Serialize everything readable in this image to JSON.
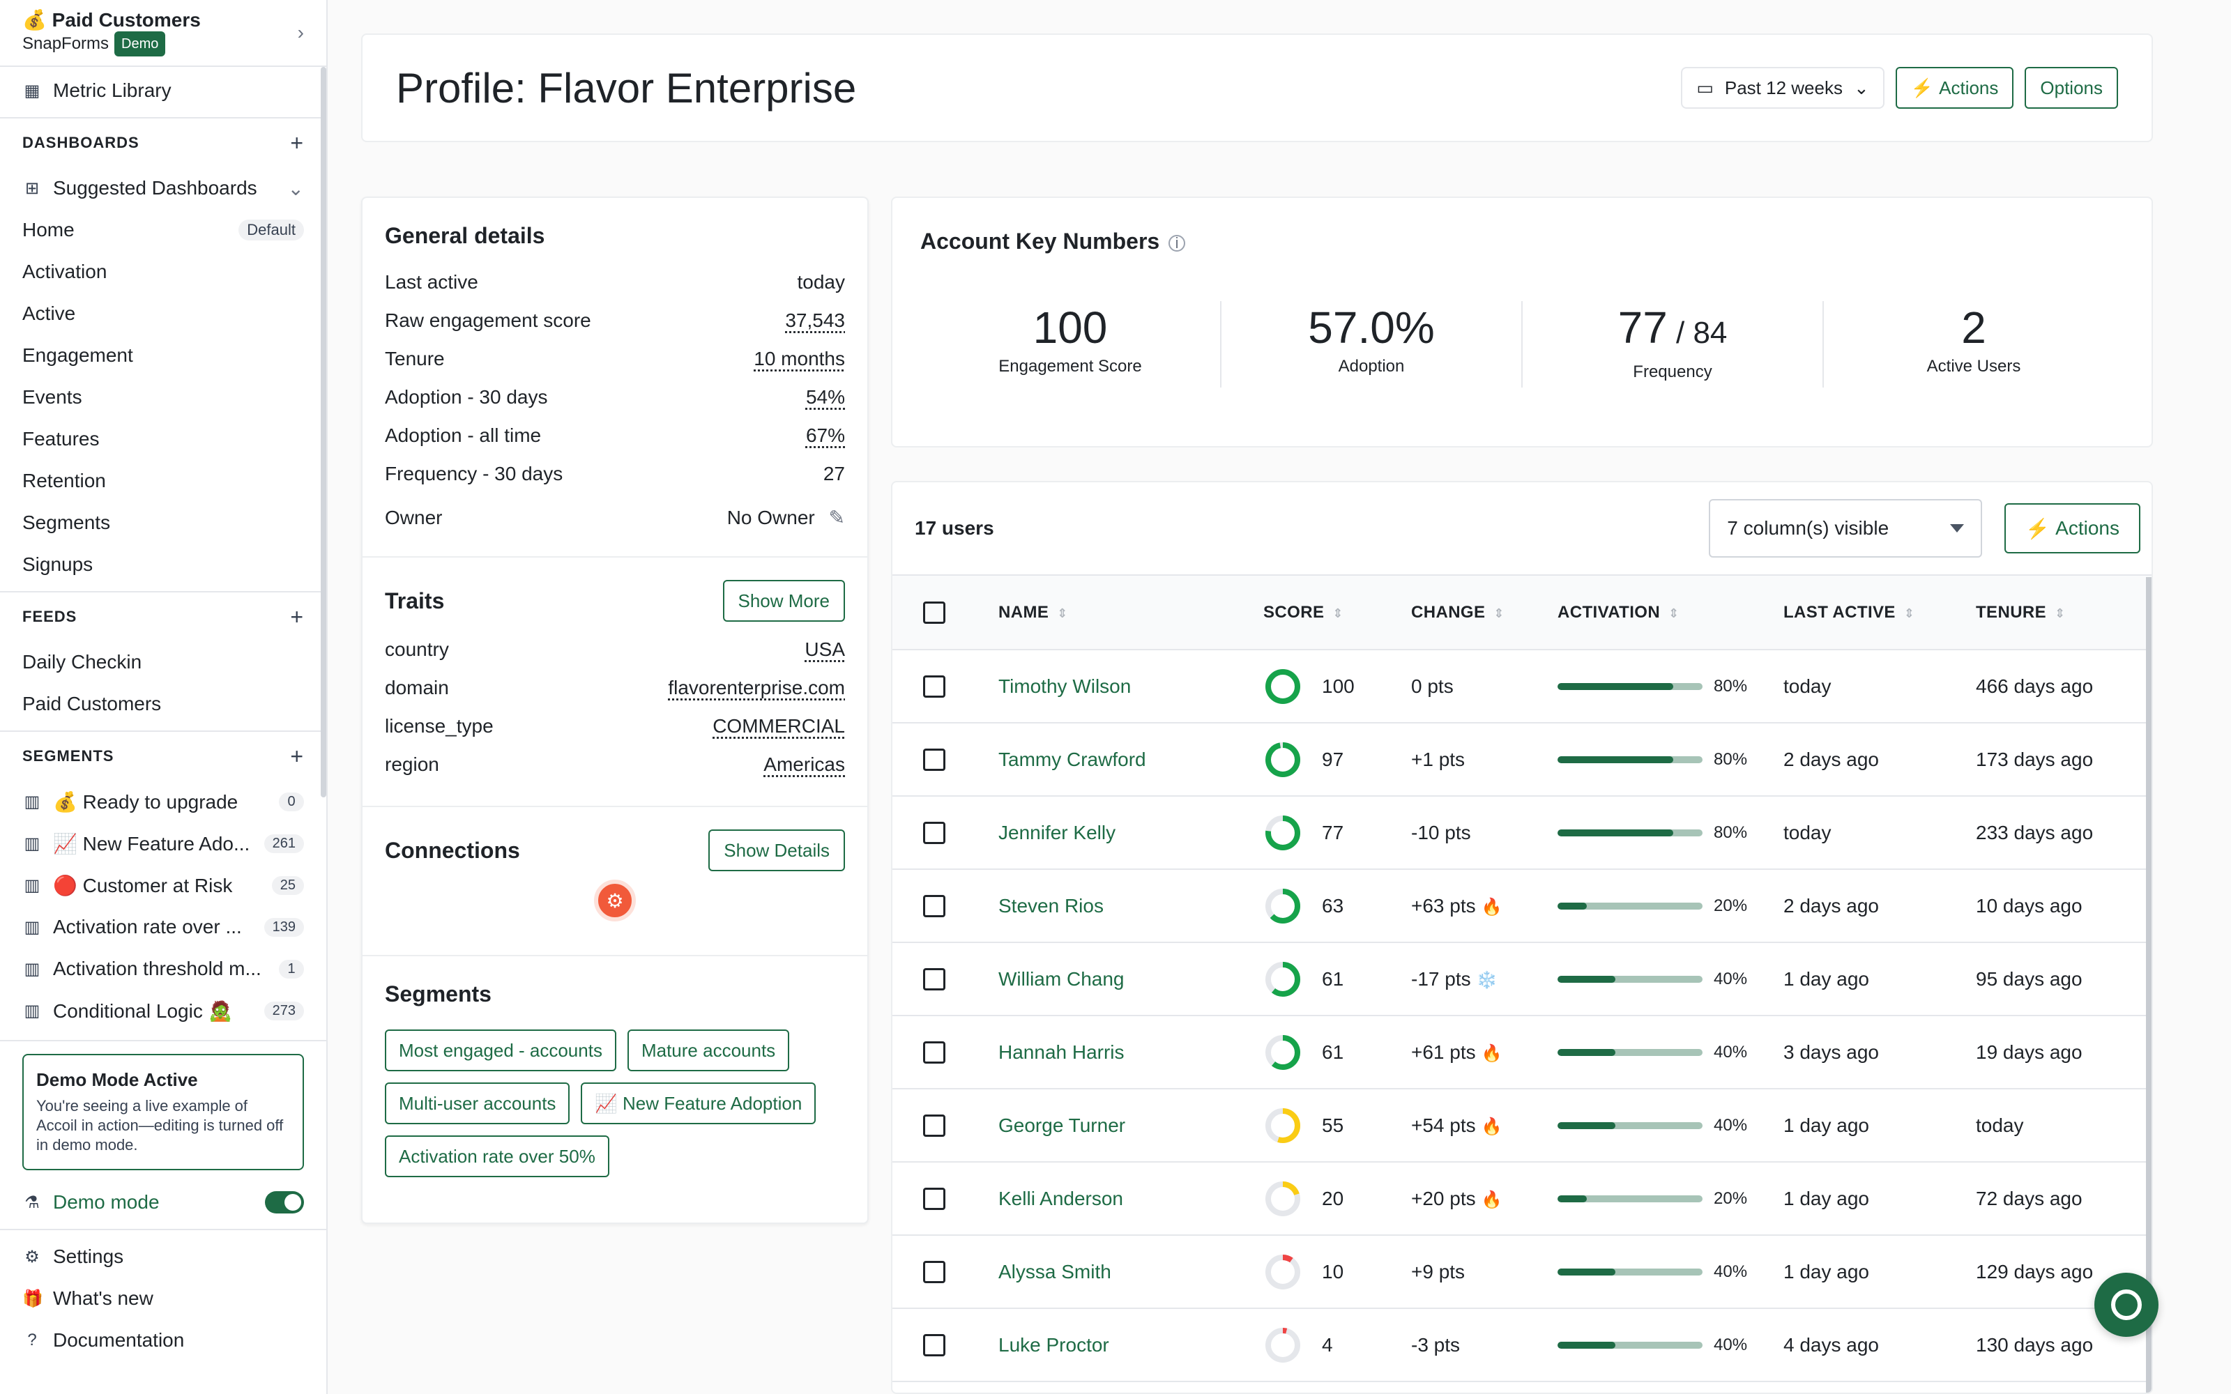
{
  "workspace": {
    "icon": "💰",
    "name": "Paid Customers",
    "company": "SnapForms",
    "badge": "Demo"
  },
  "sidebar": {
    "metric_library": "Metric Library",
    "dashboards_header": "DASHBOARDS",
    "suggested": "Suggested Dashboards",
    "dashboards": [
      {
        "label": "Home",
        "badge": "Default"
      },
      {
        "label": "Activation"
      },
      {
        "label": "Active"
      },
      {
        "label": "Engagement"
      },
      {
        "label": "Events"
      },
      {
        "label": "Features"
      },
      {
        "label": "Retention"
      },
      {
        "label": "Segments"
      },
      {
        "label": "Signups"
      }
    ],
    "feeds_header": "FEEDS",
    "feeds": [
      {
        "label": "Daily Checkin"
      },
      {
        "label": "Paid Customers"
      }
    ],
    "segments_header": "SEGMENTS",
    "segments": [
      {
        "label": "💰 Ready to upgrade",
        "count": "0"
      },
      {
        "label": "📈 New Feature Ado...",
        "count": "261"
      },
      {
        "label": "🔴 Customer at Risk",
        "count": "25"
      },
      {
        "label": "Activation rate over ...",
        "count": "139"
      },
      {
        "label": "Activation threshold m...",
        "count": "1"
      },
      {
        "label": "Conditional Logic 🧟",
        "count": "273"
      }
    ],
    "demo_box": {
      "title": "Demo Mode Active",
      "text": "You're seeing a live example of Accoil in action—editing is turned off in demo mode."
    },
    "demo_mode": "Demo mode",
    "settings": "Settings",
    "whats_new": "What's new",
    "documentation": "Documentation"
  },
  "header": {
    "title": "Profile: Flavor Enterprise",
    "date_range": "Past 12 weeks",
    "actions": "Actions",
    "options": "Options"
  },
  "general": {
    "title": "General details",
    "rows": [
      {
        "k": "Last active",
        "v": "today"
      },
      {
        "k": "Raw engagement score",
        "v": "37,543"
      },
      {
        "k": "Tenure",
        "v": "10 months"
      },
      {
        "k": "Adoption - 30 days",
        "v": "54%"
      },
      {
        "k": "Adoption - all time",
        "v": "67%"
      },
      {
        "k": "Frequency - 30 days",
        "v": "27"
      }
    ],
    "owner_label": "Owner",
    "owner_value": "No Owner"
  },
  "traits": {
    "title": "Traits",
    "button": "Show More",
    "rows": [
      {
        "k": "country",
        "v": "USA"
      },
      {
        "k": "domain",
        "v": "flavorenterprise.com"
      },
      {
        "k": "license_type",
        "v": "COMMERCIAL"
      },
      {
        "k": "region",
        "v": "Americas"
      }
    ]
  },
  "connections": {
    "title": "Connections",
    "button": "Show Details"
  },
  "segments_card": {
    "title": "Segments",
    "chips": [
      "Most engaged - accounts",
      "Mature accounts",
      "Multi-user accounts",
      "📈 New Feature Adoption",
      "Activation rate over 50%"
    ]
  },
  "key_numbers": {
    "title": "Account Key Numbers",
    "items": [
      {
        "value": "100",
        "label": "Engagement Score"
      },
      {
        "value": "57.0%",
        "label": "Adoption"
      },
      {
        "value": "77",
        "suffix": " / 84",
        "label": "Frequency"
      },
      {
        "value": "2",
        "label": "Active Users"
      }
    ]
  },
  "users": {
    "count": "17 users",
    "columns_visible": "7 column(s) visible",
    "actions": "Actions",
    "headers": [
      "NAME",
      "SCORE",
      "CHANGE",
      "ACTIVATION",
      "LAST ACTIVE",
      "TENURE"
    ],
    "rows": [
      {
        "name": "Timothy Wilson",
        "score": "100",
        "score_val": 100,
        "ring": "#16a34a",
        "change": "0 pts",
        "emoji": "",
        "activation": "80%",
        "act_val": 0.8,
        "last": "today",
        "tenure": "466 days ago"
      },
      {
        "name": "Tammy Crawford",
        "score": "97",
        "score_val": 97,
        "ring": "#16a34a",
        "change": "+1 pts",
        "emoji": "",
        "activation": "80%",
        "act_val": 0.8,
        "last": "2 days ago",
        "tenure": "173 days ago"
      },
      {
        "name": "Jennifer Kelly",
        "score": "77",
        "score_val": 77,
        "ring": "#16a34a",
        "change": "-10 pts",
        "emoji": "",
        "activation": "80%",
        "act_val": 0.8,
        "last": "today",
        "tenure": "233 days ago"
      },
      {
        "name": "Steven Rios",
        "score": "63",
        "score_val": 63,
        "ring": "#16a34a",
        "change": "+63 pts",
        "emoji": "🔥",
        "activation": "20%",
        "act_val": 0.2,
        "last": "2 days ago",
        "tenure": "10 days ago"
      },
      {
        "name": "William Chang",
        "score": "61",
        "score_val": 61,
        "ring": "#16a34a",
        "change": "-17 pts",
        "emoji": "❄️",
        "activation": "40%",
        "act_val": 0.4,
        "last": "1 day ago",
        "tenure": "95 days ago"
      },
      {
        "name": "Hannah Harris",
        "score": "61",
        "score_val": 61,
        "ring": "#16a34a",
        "change": "+61 pts",
        "emoji": "🔥",
        "activation": "40%",
        "act_val": 0.4,
        "last": "3 days ago",
        "tenure": "19 days ago"
      },
      {
        "name": "George Turner",
        "score": "55",
        "score_val": 55,
        "ring": "#facc15",
        "change": "+54 pts",
        "emoji": "🔥",
        "activation": "40%",
        "act_val": 0.4,
        "last": "1 day ago",
        "tenure": "today"
      },
      {
        "name": "Kelli Anderson",
        "score": "20",
        "score_val": 20,
        "ring": "#facc15",
        "change": "+20 pts",
        "emoji": "🔥",
        "activation": "20%",
        "act_val": 0.2,
        "last": "1 day ago",
        "tenure": "72 days ago"
      },
      {
        "name": "Alyssa Smith",
        "score": "10",
        "score_val": 10,
        "ring": "#ef4444",
        "change": "+9 pts",
        "emoji": "",
        "activation": "40%",
        "act_val": 0.4,
        "last": "1 day ago",
        "tenure": "129 days ago"
      },
      {
        "name": "Luke Proctor",
        "score": "4",
        "score_val": 4,
        "ring": "#ef4444",
        "change": "-3 pts",
        "emoji": "",
        "activation": "40%",
        "act_val": 0.4,
        "last": "4 days ago",
        "tenure": "130 days ago"
      }
    ]
  },
  "colors": {
    "accent": "#1e6b45",
    "track": "#a7c4b7"
  }
}
